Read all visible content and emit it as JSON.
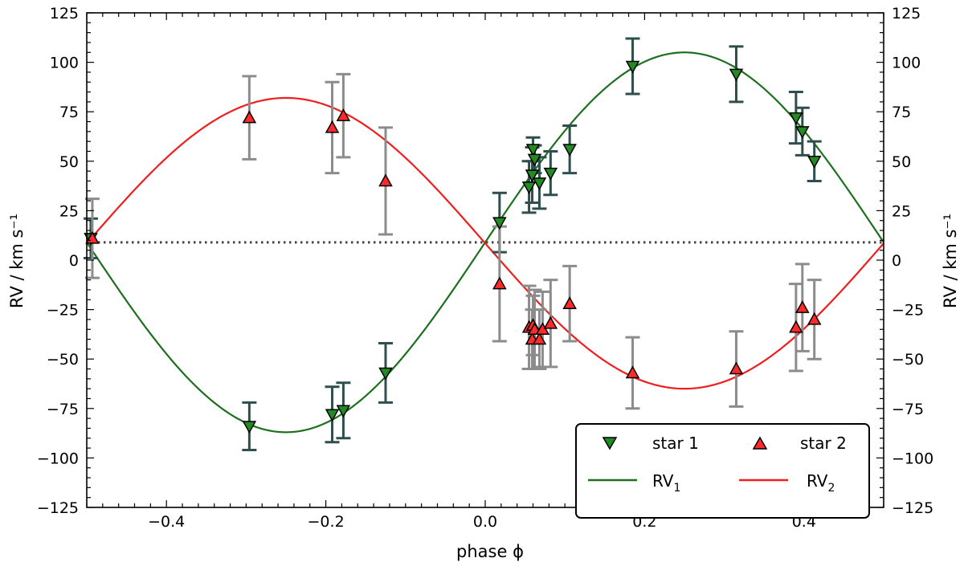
{
  "chart_data": {
    "type": "scatter",
    "title": "",
    "xlabel": "phase ϕ",
    "ylabel": "RV  /  km s⁻¹",
    "ylabel_right": "RV  /  km s⁻¹",
    "xlim": [
      -0.5,
      0.5
    ],
    "ylim": [
      -125,
      125
    ],
    "xticks": [
      -0.4,
      -0.2,
      0.0,
      0.2,
      0.4
    ],
    "xtick_labels": [
      "−0.4",
      "−0.2",
      "0.0",
      "0.2",
      "0.4"
    ],
    "yticks": [
      -125,
      -100,
      -75,
      -50,
      -25,
      0,
      25,
      50,
      75,
      100,
      125
    ],
    "ytick_labels": [
      "−125",
      "−100",
      "−75",
      "−50",
      "−25",
      "0",
      "25",
      "50",
      "75",
      "100",
      "125"
    ],
    "gamma": 9,
    "legend_position": "bottom-right",
    "series": [
      {
        "name": "star 1",
        "label": "star 1",
        "marker": "triangle-down",
        "color": "#228B22",
        "errorbar_color": "#2F4F4F",
        "points": [
          {
            "x": -0.495,
            "y": 11,
            "err": 10
          },
          {
            "x": -0.296,
            "y": -84,
            "err": 12
          },
          {
            "x": -0.192,
            "y": -78,
            "err": 14
          },
          {
            "x": -0.178,
            "y": -76,
            "err": 14
          },
          {
            "x": -0.125,
            "y": -57,
            "err": 15
          },
          {
            "x": 0.018,
            "y": 19,
            "err": 15
          },
          {
            "x": 0.055,
            "y": 37,
            "err": 13
          },
          {
            "x": 0.059,
            "y": 43,
            "err": 14
          },
          {
            "x": 0.06,
            "y": 56,
            "err": 6
          },
          {
            "x": 0.062,
            "y": 51,
            "err": 7
          },
          {
            "x": 0.068,
            "y": 39,
            "err": 13
          },
          {
            "x": 0.082,
            "y": 44,
            "err": 11
          },
          {
            "x": 0.106,
            "y": 56,
            "err": 12
          },
          {
            "x": 0.185,
            "y": 98,
            "err": 14
          },
          {
            "x": 0.315,
            "y": 94,
            "err": 14
          },
          {
            "x": 0.39,
            "y": 72,
            "err": 13
          },
          {
            "x": 0.398,
            "y": 65,
            "err": 12
          },
          {
            "x": 0.413,
            "y": 50,
            "err": 10
          }
        ]
      },
      {
        "name": "star 2",
        "label": "star 2",
        "marker": "triangle-up",
        "color": "#FF2A2A",
        "errorbar_color": "#8C8C8C",
        "points": [
          {
            "x": -0.493,
            "y": 11,
            "err": 20
          },
          {
            "x": -0.296,
            "y": 72,
            "err": 21
          },
          {
            "x": -0.192,
            "y": 67,
            "err": 23
          },
          {
            "x": -0.178,
            "y": 73,
            "err": 21
          },
          {
            "x": -0.125,
            "y": 40,
            "err": 27
          },
          {
            "x": 0.018,
            "y": -12,
            "err": 29
          },
          {
            "x": 0.055,
            "y": -34,
            "err": 21
          },
          {
            "x": 0.059,
            "y": -40,
            "err": 15
          },
          {
            "x": 0.06,
            "y": -33,
            "err": 15
          },
          {
            "x": 0.062,
            "y": -35,
            "err": 20
          },
          {
            "x": 0.068,
            "y": -40,
            "err": 15
          },
          {
            "x": 0.072,
            "y": -35,
            "err": 19
          },
          {
            "x": 0.082,
            "y": -32,
            "err": 22
          },
          {
            "x": 0.106,
            "y": -22,
            "err": 19
          },
          {
            "x": 0.185,
            "y": -57,
            "err": 18
          },
          {
            "x": 0.315,
            "y": -55,
            "err": 19
          },
          {
            "x": 0.39,
            "y": -34,
            "err": 22
          },
          {
            "x": 0.398,
            "y": -24,
            "err": 22
          },
          {
            "x": 0.413,
            "y": -30,
            "err": 20
          }
        ]
      }
    ],
    "curves": [
      {
        "name": "RV1",
        "label_main": "RV",
        "label_sub": "1",
        "color": "#1E6F1E",
        "gamma": 9,
        "K": 96
      },
      {
        "name": "RV2",
        "label_main": "RV",
        "label_sub": "2",
        "color": "#F01E1E",
        "gamma": 8.5,
        "K": -73.5
      }
    ]
  }
}
